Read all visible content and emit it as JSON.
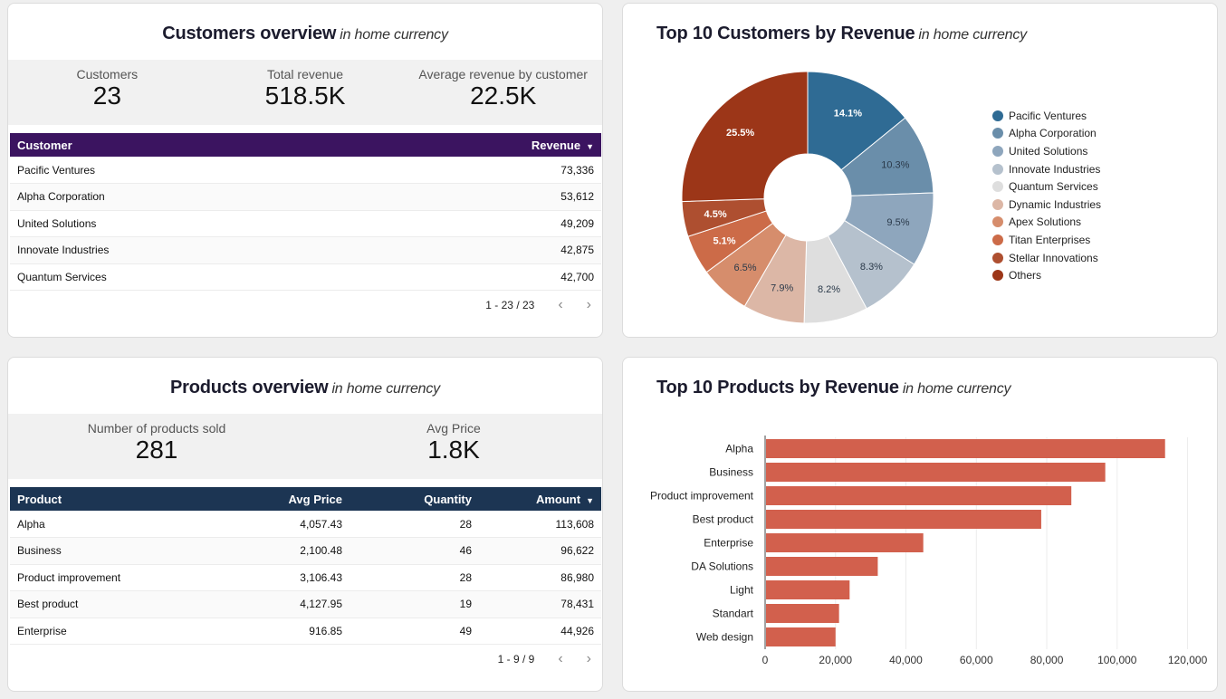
{
  "customers_overview": {
    "title": "Customers overview",
    "subtitle": "in home currency",
    "kpis": [
      {
        "label": "Customers",
        "value": "23"
      },
      {
        "label": "Total revenue",
        "value": "518.5K"
      },
      {
        "label": "Average revenue by customer",
        "value": "22.5K"
      }
    ],
    "table": {
      "headers": [
        "Customer",
        "Revenue"
      ],
      "rows": [
        [
          "Pacific Ventures",
          "73,336"
        ],
        [
          "Alpha Corporation",
          "53,612"
        ],
        [
          "United Solutions",
          "49,209"
        ],
        [
          "Innovate Industries",
          "42,875"
        ],
        [
          "Quantum Services",
          "42,700"
        ]
      ]
    },
    "pagination": "1 - 23 / 23"
  },
  "top_customers": {
    "title": "Top 10 Customers by Revenue",
    "subtitle": "in home currency"
  },
  "products_overview": {
    "title": "Products overview",
    "subtitle": "in home currency",
    "kpis": [
      {
        "label": "Number of products sold",
        "value": "281"
      },
      {
        "label": "Avg Price",
        "value": "1.8K"
      }
    ],
    "table": {
      "headers": [
        "Product",
        "Avg Price",
        "Quantity",
        "Amount"
      ],
      "rows": [
        [
          "Alpha",
          "4,057.43",
          "28",
          "113,608"
        ],
        [
          "Business",
          "2,100.48",
          "46",
          "96,622"
        ],
        [
          "Product improvement",
          "3,106.43",
          "28",
          "86,980"
        ],
        [
          "Best product",
          "4,127.95",
          "19",
          "78,431"
        ],
        [
          "Enterprise",
          "916.85",
          "49",
          "44,926"
        ]
      ]
    },
    "pagination": "1 - 9 / 9"
  },
  "top_products": {
    "title": "Top 10 Products by Revenue",
    "subtitle": "in home currency"
  },
  "colors": {
    "customer_header": "#3b1460",
    "product_header": "#1c3553",
    "bar": "#d2604d"
  },
  "chart_data": [
    {
      "type": "pie",
      "title": "Top 10 Customers by Revenue",
      "donut": true,
      "legend_position": "right",
      "categories": [
        "Pacific Ventures",
        "Alpha Corporation",
        "United Solutions",
        "Innovate Industries",
        "Quantum Services",
        "Dynamic Industries",
        "Apex Solutions",
        "Titan Enterprises",
        "Stellar Innovations",
        "Others"
      ],
      "values": [
        14.1,
        10.3,
        9.5,
        8.3,
        8.2,
        7.9,
        6.5,
        5.1,
        4.5,
        25.5
      ],
      "labels": [
        "14.1%",
        "10.3%",
        "9.5%",
        "8.3%",
        "8.2%",
        "7.9%",
        "6.5%",
        "5.1%",
        "4.5%",
        "25.5%"
      ],
      "colors": [
        "#2f6b94",
        "#6a8eaa",
        "#8ea6bd",
        "#b5c1cd",
        "#dedede",
        "#dcb7a6",
        "#d68d6c",
        "#cc6b48",
        "#ae4f30",
        "#9c3618"
      ],
      "label_colors": [
        "#ffffff",
        "#2b3a4a",
        "#2b3a4a",
        "#2b3a4a",
        "#2b3a4a",
        "#2b3a4a",
        "#2b3a4a",
        "#ffffff",
        "#ffffff",
        "#ffffff"
      ]
    },
    {
      "type": "bar",
      "orientation": "horizontal",
      "title": "Top 10 Products by Revenue",
      "categories": [
        "Alpha",
        "Business",
        "Product improvement",
        "Best product",
        "Enterprise",
        "DA Solutions",
        "Light",
        "Standart",
        "Web design"
      ],
      "values": [
        113608,
        96622,
        86980,
        78431,
        44926,
        32000,
        24000,
        21000,
        20000
      ],
      "xlim": [
        0,
        125000
      ],
      "xticks": [
        0,
        20000,
        40000,
        60000,
        80000,
        100000,
        120000
      ],
      "xtick_labels": [
        "0",
        "20,000",
        "40,000",
        "60,000",
        "80,000",
        "100,000",
        "120,000"
      ],
      "grid": true
    }
  ]
}
